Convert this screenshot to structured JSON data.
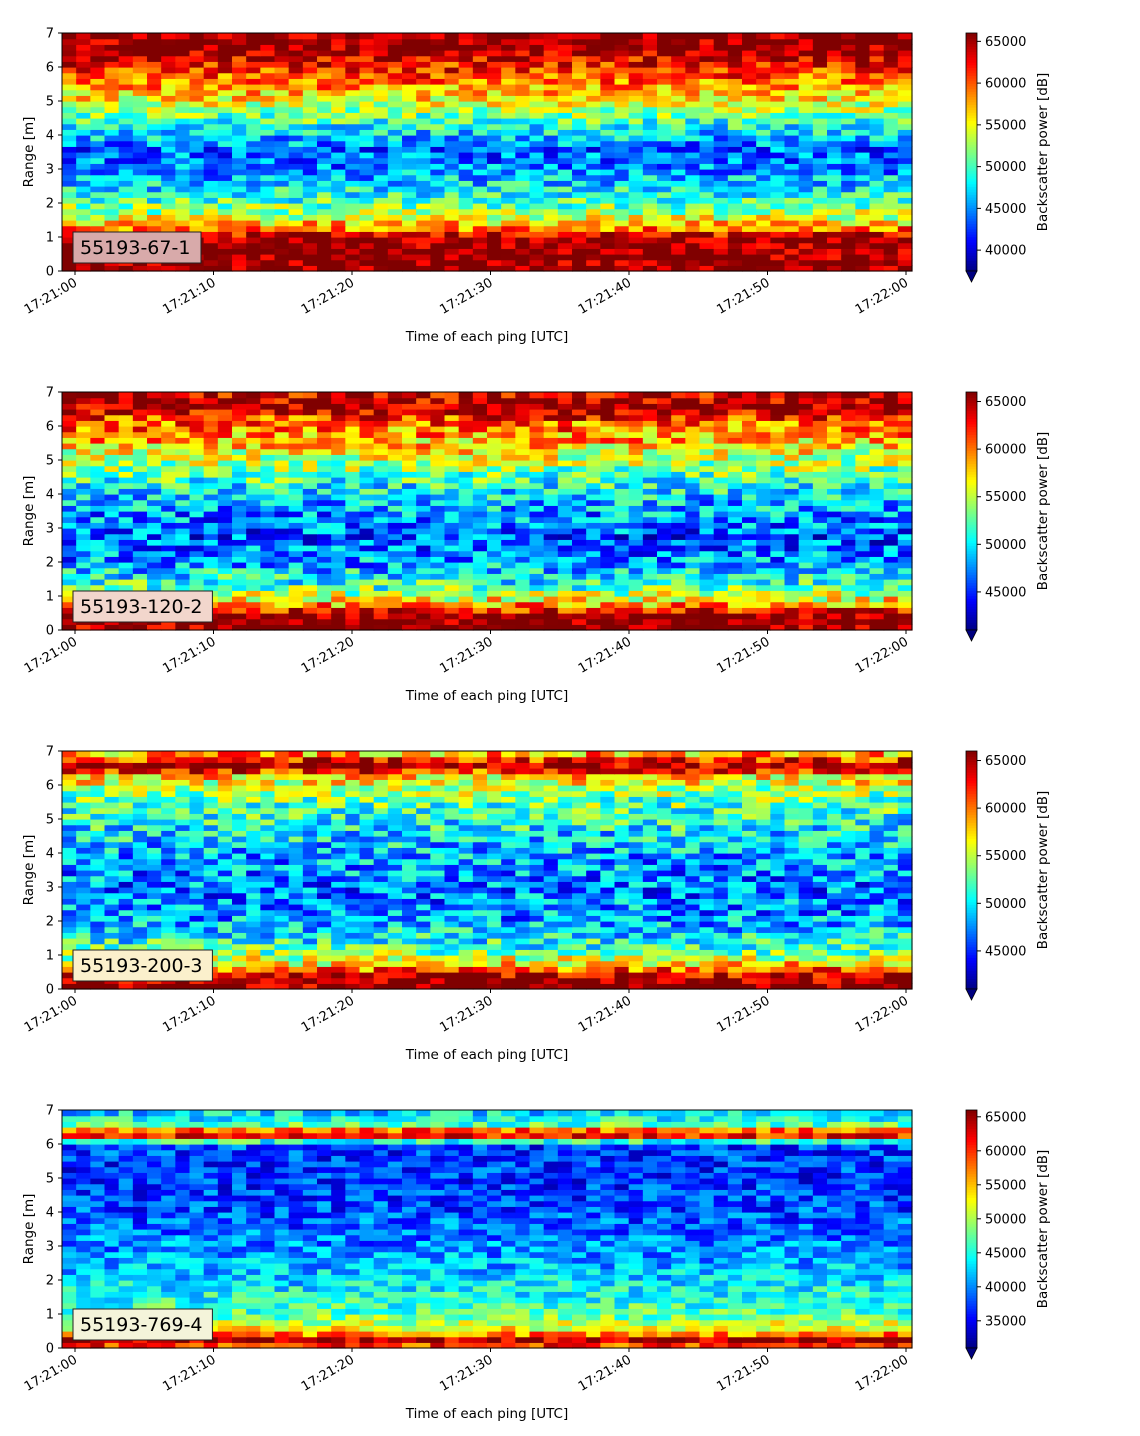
{
  "chart_data": [
    {
      "type": "heatmap",
      "label": "55193-67-1",
      "label_box_color": "#d8aaaa",
      "xlabel": "Time of each ping [UTC]",
      "ylabel": "Range [m]",
      "ylim": [
        0,
        7
      ],
      "yticks": [
        "0",
        "1",
        "2",
        "3",
        "4",
        "5",
        "6",
        "7"
      ],
      "xticks": [
        "17:21:00",
        "17:21:10",
        "17:21:20",
        "17:21:30",
        "17:21:40",
        "17:21:50",
        "17:22:00"
      ],
      "colorbar_label": "Backscatter power [dB]",
      "colorbar_range": [
        37500,
        66000
      ],
      "colorbar_ticks": [
        "40000",
        "45000",
        "50000",
        "55000",
        "60000",
        "65000"
      ],
      "colorbar_extend": "min",
      "colormap": "jet",
      "profile": [
        {
          "range": 0.1,
          "value": 66000
        },
        {
          "range": 0.5,
          "value": 66000
        },
        {
          "range": 0.95,
          "value": 66000
        },
        {
          "range": 1.2,
          "value": 60000
        },
        {
          "range": 1.6,
          "value": 54000
        },
        {
          "range": 2.2,
          "value": 49000
        },
        {
          "range": 3.0,
          "value": 45000
        },
        {
          "range": 3.6,
          "value": 44000
        },
        {
          "range": 4.3,
          "value": 49000
        },
        {
          "range": 5.0,
          "value": 55000
        },
        {
          "range": 5.7,
          "value": 60000
        },
        {
          "range": 6.2,
          "value": 63000
        },
        {
          "range": 6.5,
          "value": 66000
        },
        {
          "range": 7.0,
          "value": 66000
        }
      ]
    },
    {
      "type": "heatmap",
      "label": "55193-120-2",
      "label_box_color": "#f2d6cc",
      "xlabel": "Time of each ping [UTC]",
      "ylabel": "Range [m]",
      "ylim": [
        0,
        7
      ],
      "yticks": [
        "0",
        "1",
        "2",
        "3",
        "4",
        "5",
        "6",
        "7"
      ],
      "xticks": [
        "17:21:00",
        "17:21:10",
        "17:21:20",
        "17:21:30",
        "17:21:40",
        "17:21:50",
        "17:22:00"
      ],
      "colorbar_label": "Backscatter power [dB]",
      "colorbar_range": [
        41000,
        66000
      ],
      "colorbar_ticks": [
        "45000",
        "50000",
        "55000",
        "60000",
        "65000"
      ],
      "colorbar_extend": "min",
      "colormap": "jet",
      "profile": [
        {
          "range": 0.1,
          "value": 66000
        },
        {
          "range": 0.45,
          "value": 66000
        },
        {
          "range": 0.8,
          "value": 58000
        },
        {
          "range": 1.3,
          "value": 52000
        },
        {
          "range": 2.0,
          "value": 48000
        },
        {
          "range": 2.7,
          "value": 46000
        },
        {
          "range": 3.5,
          "value": 48000
        },
        {
          "range": 4.3,
          "value": 51000
        },
        {
          "range": 5.0,
          "value": 55000
        },
        {
          "range": 5.7,
          "value": 59000
        },
        {
          "range": 6.2,
          "value": 61000
        },
        {
          "range": 6.5,
          "value": 66000
        },
        {
          "range": 7.0,
          "value": 64000
        }
      ]
    },
    {
      "type": "heatmap",
      "label": "55193-200-3",
      "label_box_color": "#fbf0cc",
      "xlabel": "Time of each ping [UTC]",
      "ylabel": "Range [m]",
      "ylim": [
        0,
        7
      ],
      "yticks": [
        "0",
        "1",
        "2",
        "3",
        "4",
        "5",
        "6",
        "7"
      ],
      "xticks": [
        "17:21:00",
        "17:21:10",
        "17:21:20",
        "17:21:30",
        "17:21:40",
        "17:21:50",
        "17:22:00"
      ],
      "colorbar_label": "Backscatter power [dB]",
      "colorbar_range": [
        41000,
        66000
      ],
      "colorbar_ticks": [
        "45000",
        "50000",
        "55000",
        "60000",
        "65000"
      ],
      "colorbar_extend": "min",
      "colormap": "jet",
      "profile": [
        {
          "range": 0.1,
          "value": 66000
        },
        {
          "range": 0.35,
          "value": 66000
        },
        {
          "range": 0.7,
          "value": 58000
        },
        {
          "range": 1.2,
          "value": 52000
        },
        {
          "range": 2.0,
          "value": 48000
        },
        {
          "range": 3.0,
          "value": 47000
        },
        {
          "range": 4.0,
          "value": 48500
        },
        {
          "range": 5.0,
          "value": 51000
        },
        {
          "range": 5.8,
          "value": 54000
        },
        {
          "range": 6.3,
          "value": 58000
        },
        {
          "range": 6.55,
          "value": 66000
        },
        {
          "range": 7.0,
          "value": 57000
        }
      ]
    },
    {
      "type": "heatmap",
      "label": "55193-769-4",
      "label_box_color": "#f4f4da",
      "xlabel": "Time of each ping [UTC]",
      "ylabel": "Range [m]",
      "ylim": [
        0,
        7
      ],
      "yticks": [
        "0",
        "1",
        "2",
        "3",
        "4",
        "5",
        "6",
        "7"
      ],
      "xticks": [
        "17:21:00",
        "17:21:10",
        "17:21:20",
        "17:21:30",
        "17:21:40",
        "17:21:50",
        "17:22:00"
      ],
      "colorbar_label": "Backscatter power [dB]",
      "colorbar_range": [
        31000,
        66000
      ],
      "colorbar_ticks": [
        "35000",
        "40000",
        "45000",
        "50000",
        "55000",
        "60000",
        "65000"
      ],
      "colorbar_extend": "min",
      "colormap": "jet",
      "profile": [
        {
          "range": 0.05,
          "value": 58000
        },
        {
          "range": 0.2,
          "value": 66000
        },
        {
          "range": 0.5,
          "value": 54000
        },
        {
          "range": 1.0,
          "value": 47000
        },
        {
          "range": 2.0,
          "value": 43000
        },
        {
          "range": 3.0,
          "value": 40000
        },
        {
          "range": 4.0,
          "value": 38000
        },
        {
          "range": 5.0,
          "value": 37000
        },
        {
          "range": 6.0,
          "value": 37500
        },
        {
          "range": 6.3,
          "value": 66000
        },
        {
          "range": 6.6,
          "value": 46000
        },
        {
          "range": 7.0,
          "value": 42000
        }
      ]
    }
  ]
}
